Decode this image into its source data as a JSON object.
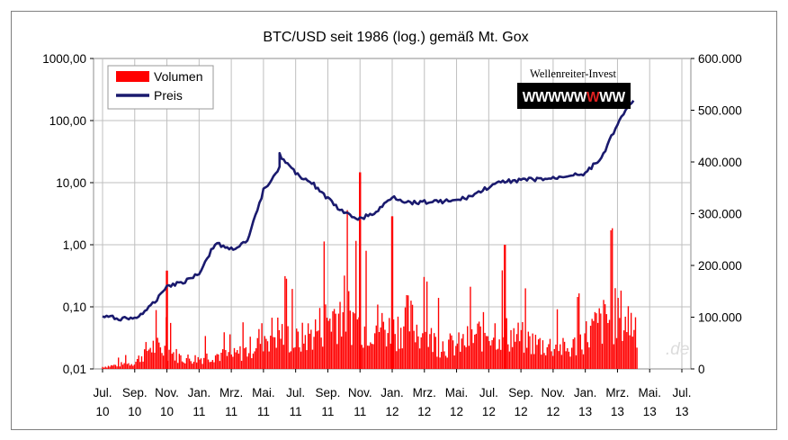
{
  "chart_data": {
    "type": "bar+line",
    "title": "BTC/USD seit 1986 (log.) gemäß Mt. Gox",
    "legend": {
      "placement": "top-left",
      "entries": [
        {
          "label": "Volumen",
          "color": "#ff0000",
          "kind": "bar"
        },
        {
          "label": "Preis",
          "color": "#1a1a6e",
          "kind": "line"
        }
      ]
    },
    "grid": true,
    "y_left": {
      "scale": "log",
      "range": [
        0.01,
        1000
      ],
      "tick_labels": [
        "0,01",
        "0,10",
        "1,00",
        "10,00",
        "100,00",
        "1000,00"
      ]
    },
    "y_right": {
      "scale": "linear",
      "range": [
        0,
        600000
      ],
      "tick_labels": [
        "0",
        "100.000",
        "200.000",
        "300.000",
        "400.000",
        "500.000",
        "600.000"
      ]
    },
    "x_axis": {
      "month_labels": [
        "Jul.",
        "Sep.",
        "Nov.",
        "Jan.",
        "Mrz.",
        "Mai.",
        "Jul.",
        "Sep.",
        "Nov.",
        "Jan.",
        "Mrz.",
        "Mai.",
        "Jul.",
        "Sep.",
        "Nov.",
        "Jan.",
        "Mrz.",
        "Mai.",
        "Jul."
      ],
      "year_labels": [
        "10",
        "10",
        "10",
        "11",
        "11",
        "11",
        "11",
        "11",
        "11",
        "12",
        "12",
        "12",
        "12",
        "12",
        "12",
        "13",
        "13",
        "13",
        "13"
      ]
    },
    "series": [
      {
        "name": "Preis",
        "axis": "left",
        "x": [
          "2010-07",
          "2010-08",
          "2010-09",
          "2010-10",
          "2010-11",
          "2010-12",
          "2011-01",
          "2011-02",
          "2011-03",
          "2011-04",
          "2011-05",
          "2011-06",
          "2011-06",
          "2011-07",
          "2011-08",
          "2011-09",
          "2011-10",
          "2011-11",
          "2011-12",
          "2012-01",
          "2012-02",
          "2012-03",
          "2012-04",
          "2012-05",
          "2012-06",
          "2012-07",
          "2012-08",
          "2012-09",
          "2012-10",
          "2012-11",
          "2012-12",
          "2013-01",
          "2013-02",
          "2013-03",
          "2013-04"
        ],
        "values": [
          0.07,
          0.065,
          0.065,
          0.1,
          0.22,
          0.25,
          0.35,
          1.05,
          0.85,
          1.1,
          7.5,
          18,
          28,
          14,
          10,
          5.5,
          3.2,
          2.6,
          3.3,
          6.0,
          4.8,
          4.9,
          5.0,
          5.1,
          6.2,
          8.5,
          10.5,
          11.0,
          11.3,
          11.6,
          13.3,
          14.2,
          25,
          90,
          210
        ]
      },
      {
        "name": "Volumen",
        "axis": "right",
        "x": [
          "2010-07",
          "2010-08",
          "2010-09",
          "2010-10",
          "2010-11",
          "2010-12",
          "2011-01",
          "2011-02",
          "2011-03",
          "2011-04",
          "2011-05",
          "2011-06",
          "2011-07",
          "2011-08",
          "2011-09",
          "2011-10",
          "2011-11",
          "2011-12",
          "2012-01",
          "2012-02",
          "2012-03",
          "2012-04",
          "2012-05",
          "2012-06",
          "2012-07",
          "2012-08",
          "2012-09",
          "2012-10",
          "2012-11",
          "2012-12",
          "2013-01",
          "2013-02",
          "2013-03",
          "2013-04"
        ],
        "values": [
          5000,
          10000,
          15000,
          55000,
          45000,
          25000,
          25000,
          35000,
          30000,
          45000,
          80000,
          90000,
          65000,
          85000,
          120000,
          150000,
          100000,
          110000,
          90000,
          120000,
          80000,
          60000,
          55000,
          75000,
          95000,
          85000,
          75000,
          60000,
          55000,
          45000,
          80000,
          110000,
          130000,
          110000
        ]
      }
    ],
    "peaks": [
      {
        "x": "2010-11",
        "series": "Volumen",
        "value": 190000
      },
      {
        "x": "2011-11",
        "series": "Volumen",
        "value": 380000
      },
      {
        "x": "2012-01",
        "series": "Volumen",
        "value": 295000
      },
      {
        "x": "2012-08",
        "series": "Volumen",
        "value": 240000
      }
    ]
  },
  "watermark": {
    "top_text": "Wellenreiter-Invest",
    "letters": [
      "W",
      "W",
      "W",
      "W",
      "W",
      "W",
      "W",
      "W"
    ],
    "highlight_index": 5,
    "highlight_color": "#e02020",
    "faint_text": ".de"
  },
  "colors": {
    "bars": "#ff0000",
    "price_line": "#1a1a6e",
    "plot_bg": "#ffffff",
    "grid": "#bfbfbf",
    "frame": "#7f7f7f"
  }
}
